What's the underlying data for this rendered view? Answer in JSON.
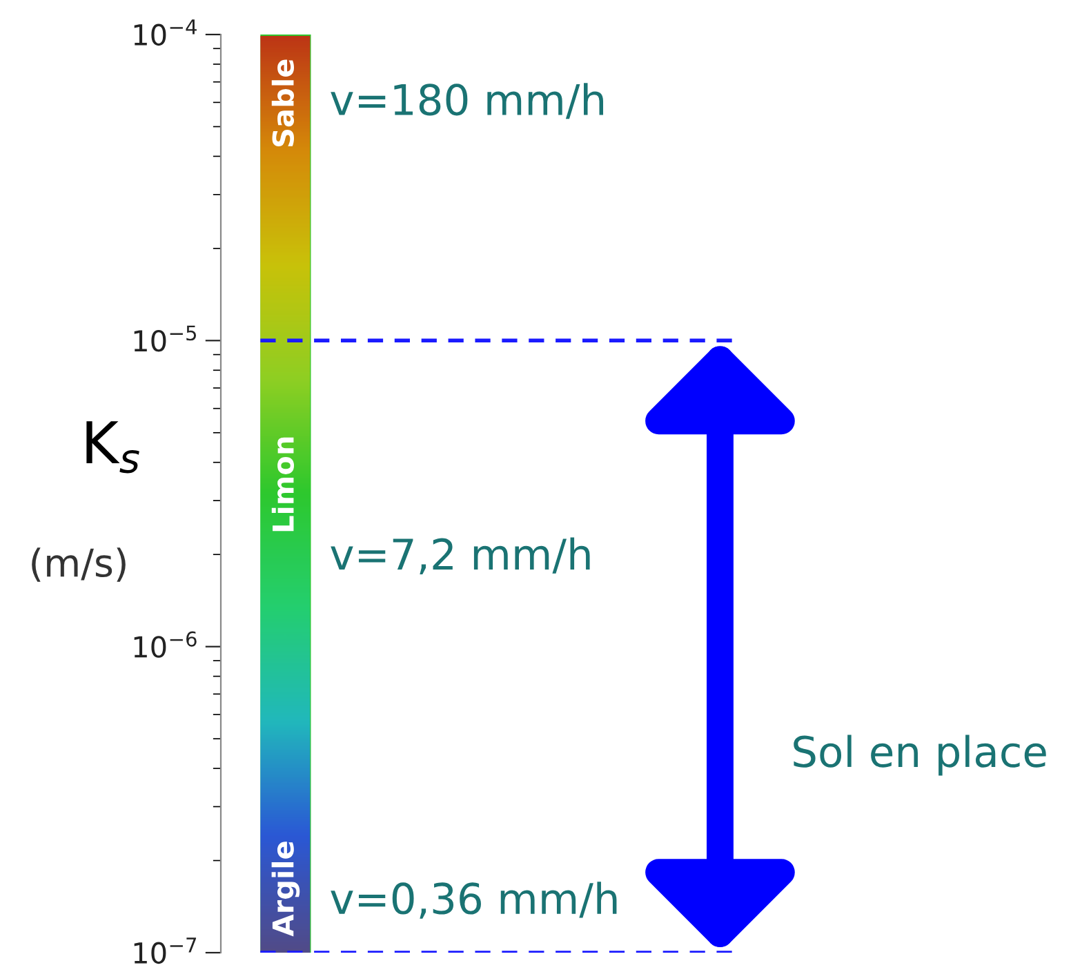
{
  "chart_data": {
    "type": "bar",
    "categories": [
      null
    ],
    "values": [
      9.99e-05
    ],
    "base": [
      1e-07
    ],
    "color": "#2ec82e",
    "ylabel": "K$_{s}$",
    "log": "y",
    "ylim": [
      1e-07,
      0.0001
    ],
    "yticks": [
      {
        "value": 1e-07,
        "label": "10$^{−7}$"
      },
      {
        "value": 1e-06,
        "label": "10$^{−6}$"
      },
      {
        "value": 1e-05,
        "label": "10$^{−5}$"
      },
      {
        "value": 0.0001,
        "label": "10$^{−4}$"
      }
    ],
    "tick_labels": "y",
    "ref_lines": [
      {
        "axis": "y",
        "value": 1e-05,
        "color": "#1a1aff",
        "line_style": "dashed"
      },
      {
        "axis": "y",
        "value": 1e-07,
        "color": "#1a1aff",
        "line_style": "dashed"
      }
    ],
    "annotations": [
      "(m/s)",
      "Sable",
      "Limon",
      "Argile",
      "v=180 mm/h",
      "v=7,2 mm/h",
      "v=0,36 mm/h",
      "Sol en place"
    ]
  }
}
